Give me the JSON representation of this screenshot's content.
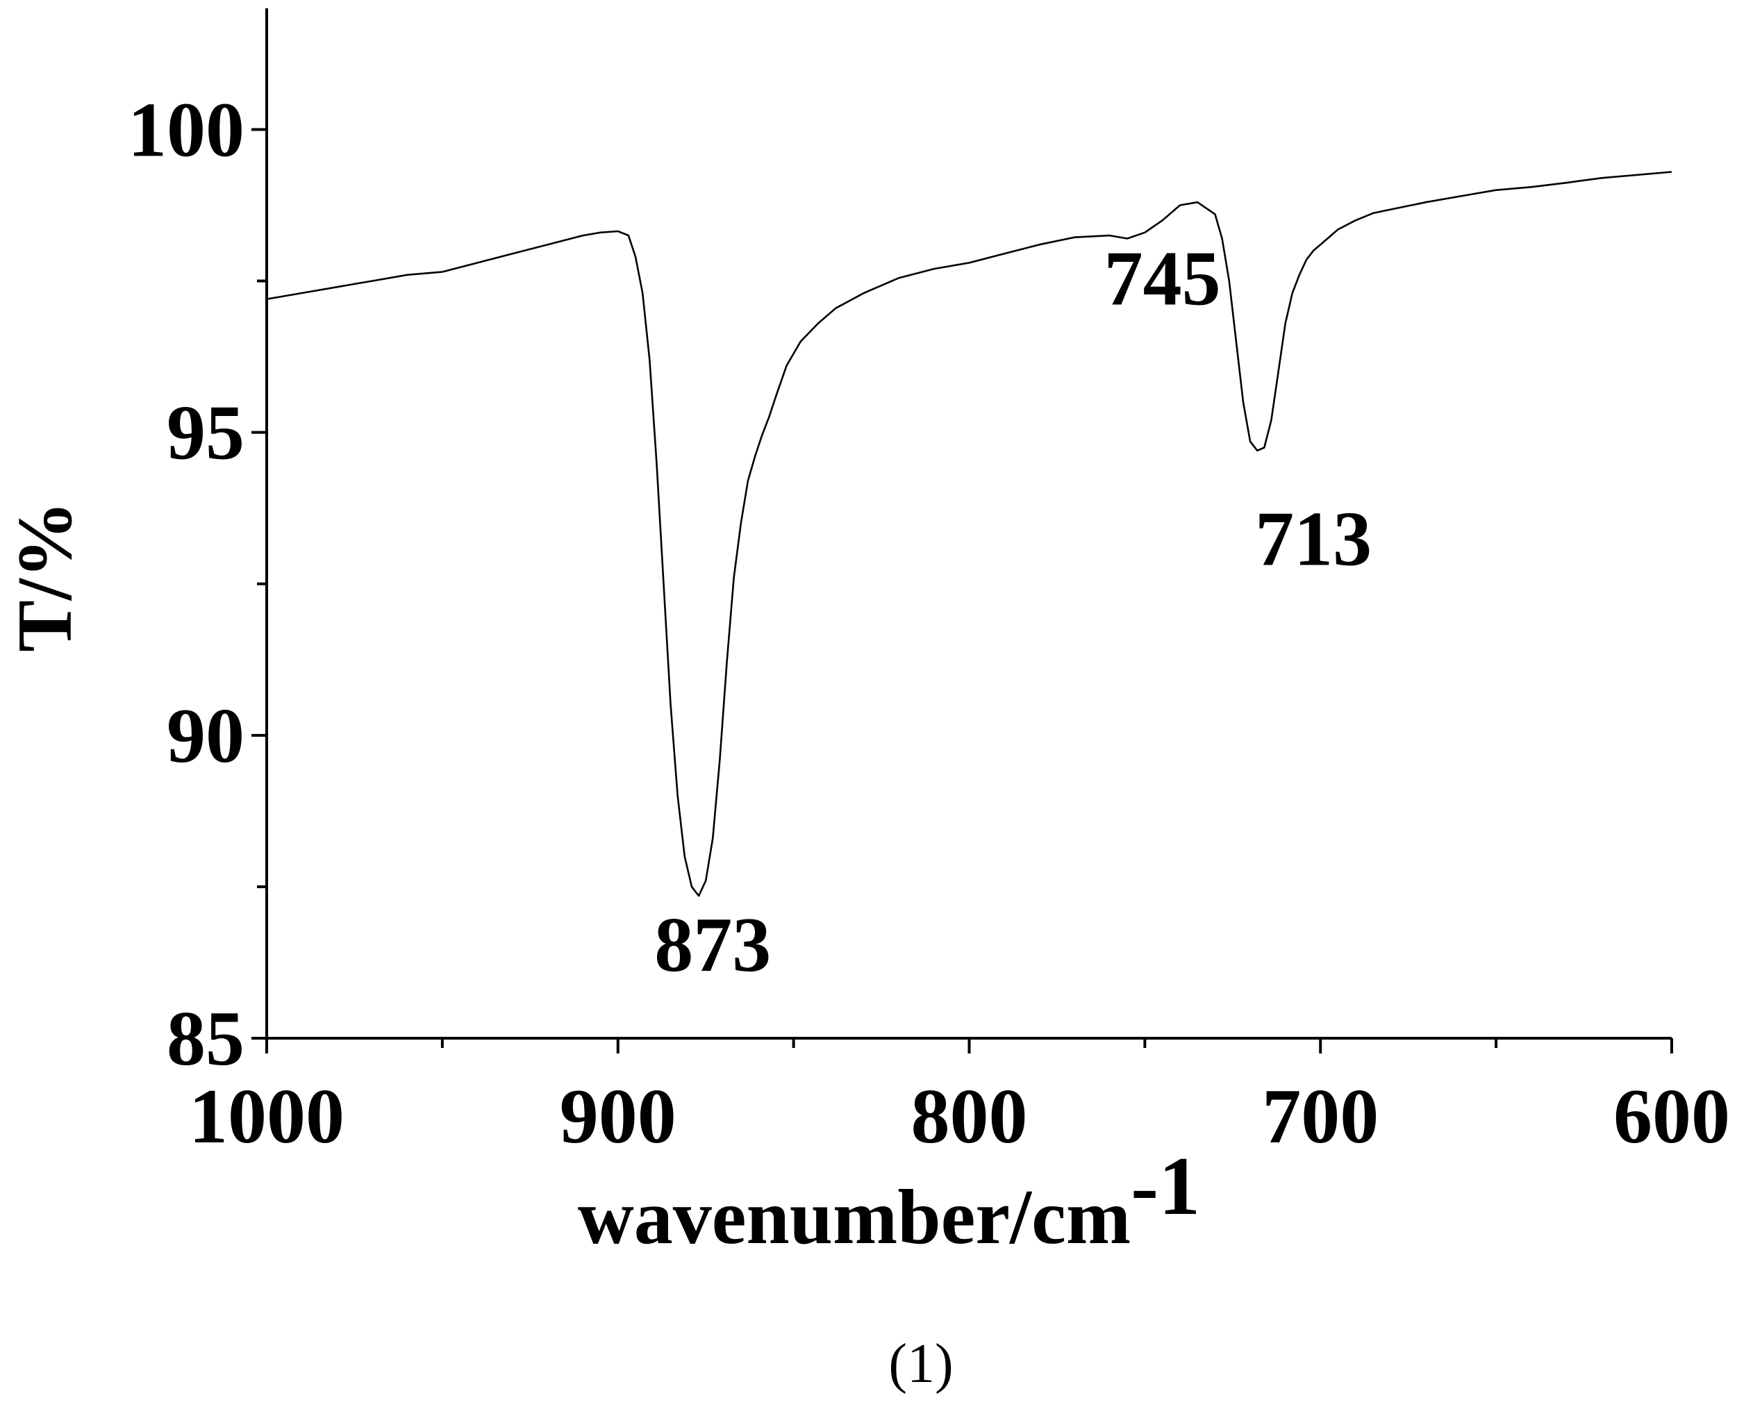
{
  "chart_data": {
    "type": "line",
    "title": "",
    "xlabel": "wavenumber/cm",
    "xlabel_superscript": "-1",
    "ylabel": "T/%",
    "panel_label": "(1)",
    "xlim": [
      1000,
      600
    ],
    "ylim": [
      85,
      102
    ],
    "x_reversed": true,
    "grid": false,
    "legend": "none",
    "x_ticks": [
      1000,
      900,
      800,
      700,
      600
    ],
    "x_tick_labels": [
      "1000",
      "900",
      "800",
      "700",
      "600"
    ],
    "x_minor_ticks": [
      950,
      850,
      750,
      650
    ],
    "y_ticks": [
      85,
      90,
      95,
      100
    ],
    "y_tick_labels": [
      "85",
      "90",
      "95",
      "100"
    ],
    "y_minor_ticks": [
      87.5,
      92.5,
      97.5
    ],
    "series": [
      {
        "color": "#000000",
        "x": [
          1000,
          995,
          990,
          980,
          970,
          960,
          950,
          940,
          930,
          920,
          910,
          905,
          900,
          897,
          895,
          893,
          891,
          889,
          887,
          885,
          883,
          881,
          879,
          877,
          875,
          873,
          871,
          869,
          867,
          865,
          863,
          861,
          859,
          857,
          855,
          852,
          848,
          843,
          838,
          830,
          820,
          810,
          800,
          790,
          780,
          770,
          760,
          755,
          750,
          745,
          740,
          735,
          730,
          728,
          726,
          724,
          722,
          720,
          718,
          716,
          714,
          712,
          710,
          708,
          706,
          704,
          702,
          700,
          698,
          695,
          690,
          685,
          680,
          670,
          660,
          650,
          640,
          630,
          620,
          610,
          600
        ],
        "y": [
          97.2,
          97.25,
          97.3,
          97.4,
          97.5,
          97.6,
          97.65,
          97.8,
          97.95,
          98.1,
          98.25,
          98.3,
          98.32,
          98.25,
          97.9,
          97.3,
          96.2,
          94.5,
          92.5,
          90.5,
          89.0,
          88.0,
          87.5,
          87.35,
          87.6,
          88.3,
          89.6,
          91.2,
          92.6,
          93.5,
          94.2,
          94.6,
          94.95,
          95.25,
          95.6,
          96.1,
          96.5,
          96.8,
          97.05,
          97.3,
          97.55,
          97.7,
          97.8,
          97.95,
          98.1,
          98.22,
          98.25,
          98.2,
          98.3,
          98.5,
          98.75,
          98.8,
          98.6,
          98.2,
          97.5,
          96.5,
          95.5,
          94.85,
          94.7,
          94.75,
          95.2,
          96.0,
          96.8,
          97.3,
          97.6,
          97.85,
          98.0,
          98.1,
          98.2,
          98.35,
          98.5,
          98.62,
          98.68,
          98.8,
          98.9,
          99.0,
          99.05,
          99.12,
          99.2,
          99.25,
          99.3
        ]
      }
    ],
    "annotations": [
      {
        "text": "873",
        "x": 873,
        "y": 86.8
      },
      {
        "text": "745",
        "x": 745,
        "y": 97.8
      },
      {
        "text": "713",
        "x": 702,
        "y": 93.5
      }
    ]
  }
}
